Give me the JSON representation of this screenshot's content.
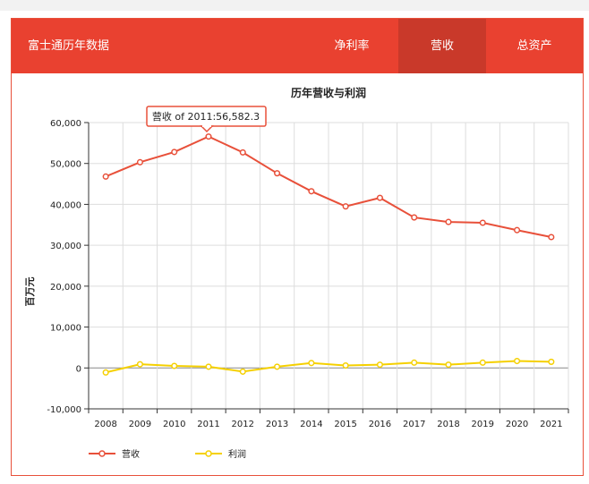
{
  "header": {
    "title": "富士通历年数据",
    "tabs": [
      {
        "label": "净利率",
        "active": false
      },
      {
        "label": "营收",
        "active": true
      },
      {
        "label": "总资产",
        "active": false
      }
    ]
  },
  "colors": {
    "brand": "#e94130",
    "tab_active": "#c9392a",
    "revenue": "#e8503a",
    "profit": "#f5d000"
  },
  "tooltip": {
    "text": "营收 of 2011:56,582.3"
  },
  "chart_data": {
    "type": "line",
    "title": "历年营收与利润",
    "xlabel": "",
    "ylabel": "百万元",
    "categories": [
      "2008",
      "2009",
      "2010",
      "2011",
      "2012",
      "2013",
      "2014",
      "2015",
      "2016",
      "2017",
      "2018",
      "2019",
      "2020",
      "2021"
    ],
    "ylim": [
      -10000,
      60000
    ],
    "yticks": [
      -10000,
      0,
      10000,
      20000,
      30000,
      40000,
      50000,
      60000
    ],
    "ytick_labels": [
      "-10,000",
      "0",
      "10,000",
      "20,000",
      "30,000",
      "40,000",
      "50,000",
      "60,000"
    ],
    "grid": true,
    "legend_position": "bottom-left",
    "series": [
      {
        "name": "营收",
        "values": [
          46800,
          50300,
          52800,
          56582.3,
          52700,
          47600,
          43200,
          39500,
          41600,
          36800,
          35700,
          35500,
          33700,
          32000
        ]
      },
      {
        "name": "利润",
        "values": [
          -1100,
          900,
          500,
          300,
          -900,
          300,
          1200,
          600,
          800,
          1300,
          800,
          1300,
          1700,
          1500
        ]
      }
    ]
  }
}
